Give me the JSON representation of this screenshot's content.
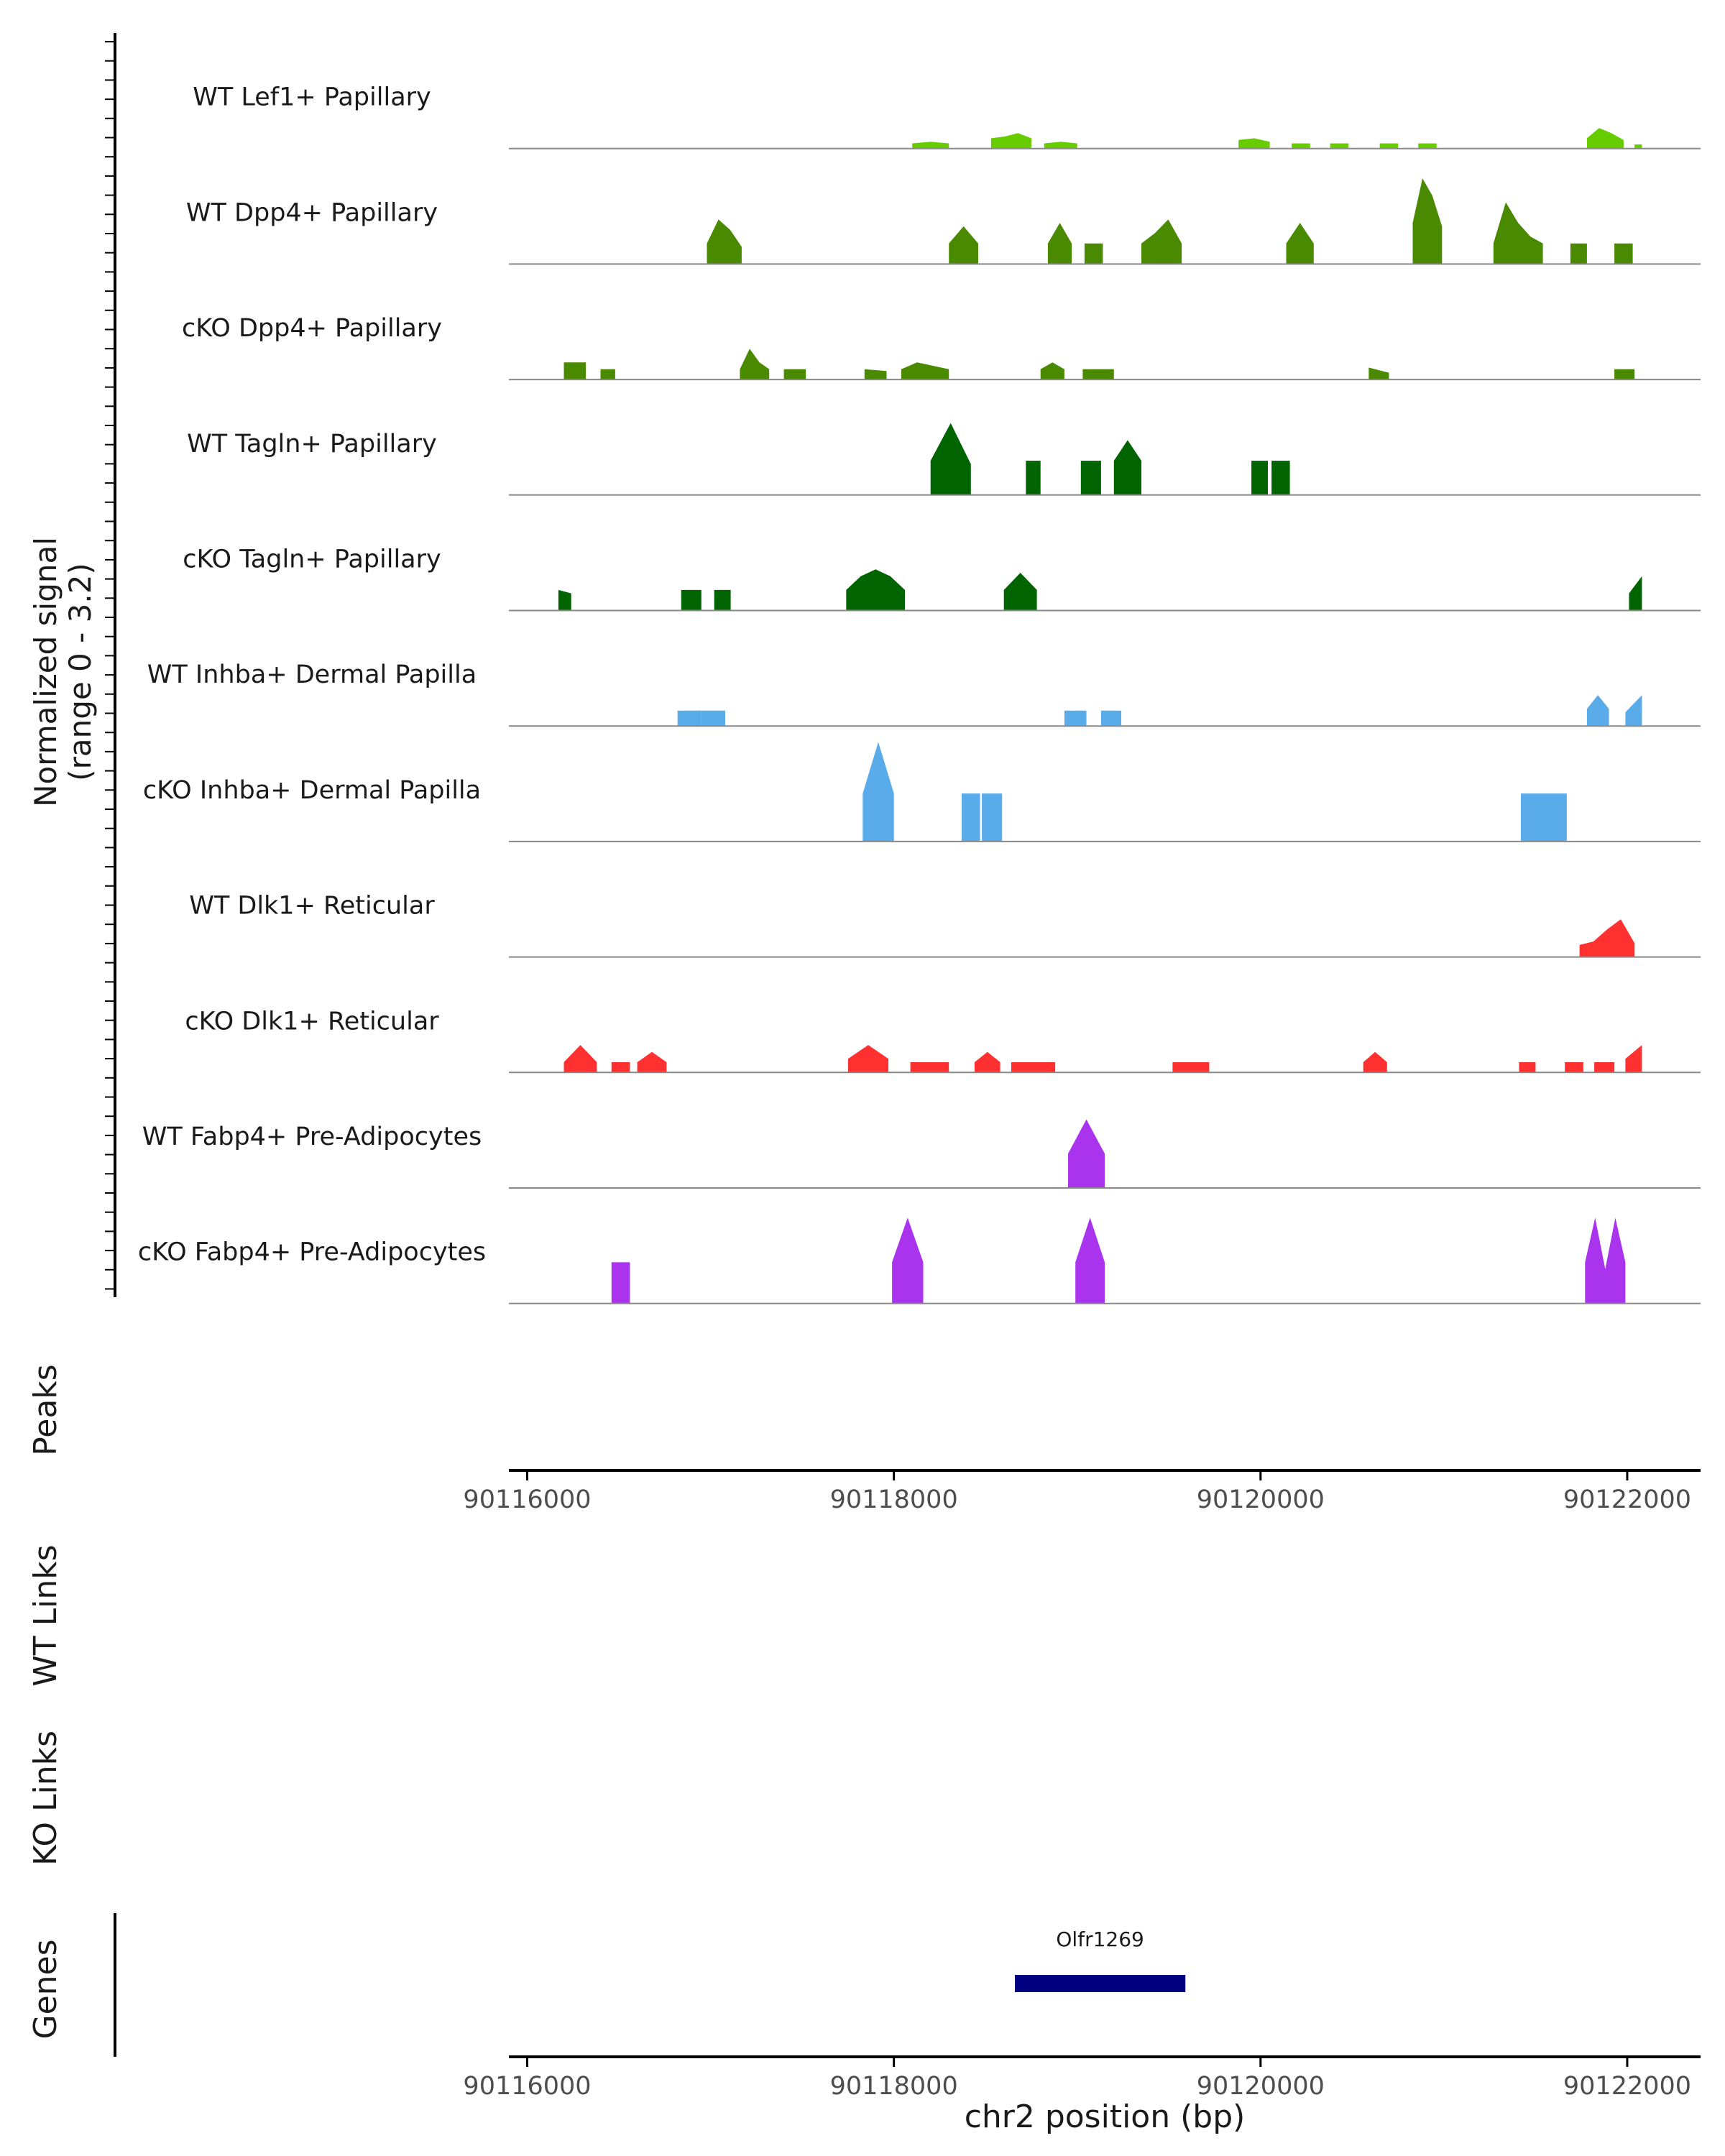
{
  "chart_data": {
    "type": "area",
    "title": "",
    "y_axis_label_line1": "Normalized signal",
    "y_axis_label_line2": "(range 0 - 3.2)",
    "ylim": [
      0,
      3.2
    ],
    "xlim": [
      90115900,
      90122400
    ],
    "x_ticks": [
      90116000,
      90118000,
      90120000,
      90122000
    ],
    "x_tick_labels": [
      "90116000",
      "90118000",
      "90120000",
      "90122000"
    ],
    "xlabel": "chr2 position (bp)",
    "tracks": [
      {
        "name": "WT Lef1+ Papillary",
        "color": "#66cc00",
        "regions": [
          {
            "s": 90118100,
            "e": 90118300,
            "h": [
              0.15,
              0.2,
              0.15
            ]
          },
          {
            "s": 90118530,
            "e": 90118750,
            "h": [
              0.3,
              0.35,
              0.45,
              0.3
            ]
          },
          {
            "s": 90118820,
            "e": 90119000,
            "h": [
              0.15,
              0.2,
              0.15
            ]
          },
          {
            "s": 90119880,
            "e": 90120050,
            "h": [
              0.25,
              0.3,
              0.2
            ]
          },
          {
            "s": 90120170,
            "e": 90120270,
            "h": [
              0.15,
              0.15
            ]
          },
          {
            "s": 90120380,
            "e": 90120480,
            "h": [
              0.15,
              0.15
            ]
          },
          {
            "s": 90120650,
            "e": 90120750,
            "h": [
              0.15,
              0.15
            ]
          },
          {
            "s": 90120860,
            "e": 90120960,
            "h": [
              0.15,
              0.15
            ]
          },
          {
            "s": 90121780,
            "e": 90121980,
            "h": [
              0.3,
              0.6,
              0.45,
              0.25
            ]
          },
          {
            "s": 90122040,
            "e": 90122080,
            "h": [
              0.12
            ]
          }
        ]
      },
      {
        "name": "WT Dpp4+ Papillary",
        "color": "#4a8a00",
        "regions": [
          {
            "s": 90116980,
            "e": 90117170,
            "h": [
              0.6,
              1.3,
              1.0,
              0.5
            ]
          },
          {
            "s": 90118300,
            "e": 90118460,
            "h": [
              0.6,
              1.1,
              0.6
            ]
          },
          {
            "s": 90118840,
            "e": 90118970,
            "h": [
              0.6,
              1.2,
              0.6
            ]
          },
          {
            "s": 90119040,
            "e": 90119140,
            "h": [
              0.6,
              0.6
            ]
          },
          {
            "s": 90119350,
            "e": 90119570,
            "h": [
              0.6,
              0.9,
              1.3,
              0.6
            ]
          },
          {
            "s": 90120140,
            "e": 90120290,
            "h": [
              0.6,
              1.2,
              0.6
            ]
          },
          {
            "s": 90120830,
            "e": 90120990,
            "h": [
              1.2,
              2.5,
              2.0,
              1.1
            ]
          },
          {
            "s": 90121270,
            "e": 90121540,
            "h": [
              0.6,
              1.8,
              1.2,
              0.8,
              0.6
            ]
          },
          {
            "s": 90121690,
            "e": 90121780,
            "h": [
              0.6,
              0.6
            ]
          },
          {
            "s": 90121930,
            "e": 90122030,
            "h": [
              0.6,
              0.6
            ]
          }
        ]
      },
      {
        "name": "cKO Dpp4+ Papillary",
        "color": "#4a8a00",
        "regions": [
          {
            "s": 90116200,
            "e": 90116320,
            "h": [
              0.5,
              0.5
            ]
          },
          {
            "s": 90116400,
            "e": 90116480,
            "h": [
              0.3,
              0.3
            ]
          },
          {
            "s": 90117160,
            "e": 90117320,
            "h": [
              0.3,
              0.9,
              0.5,
              0.3
            ]
          },
          {
            "s": 90117400,
            "e": 90117520,
            "h": [
              0.3,
              0.3
            ]
          },
          {
            "s": 90117840,
            "e": 90117960,
            "h": [
              0.3,
              0.25
            ]
          },
          {
            "s": 90118040,
            "e": 90118300,
            "h": [
              0.3,
              0.5,
              0.4,
              0.3
            ]
          },
          {
            "s": 90118800,
            "e": 90118930,
            "h": [
              0.3,
              0.5,
              0.3
            ]
          },
          {
            "s": 90119030,
            "e": 90119200,
            "h": [
              0.3,
              0.3
            ]
          },
          {
            "s": 90120590,
            "e": 90120700,
            "h": [
              0.35,
              0.2
            ]
          },
          {
            "s": 90121930,
            "e": 90122040,
            "h": [
              0.3,
              0.3
            ]
          }
        ]
      },
      {
        "name": "WT Tagln+ Papillary",
        "color": "#006400",
        "regions": [
          {
            "s": 90118200,
            "e": 90118420,
            "h": [
              1.0,
              2.1,
              0.9
            ]
          },
          {
            "s": 90118720,
            "e": 90118800,
            "h": [
              1.0,
              1.0
            ]
          },
          {
            "s": 90119020,
            "e": 90119130,
            "h": [
              1.0,
              1.0
            ]
          },
          {
            "s": 90119200,
            "e": 90119350,
            "h": [
              1.0,
              1.6,
              1.0
            ]
          },
          {
            "s": 90119950,
            "e": 90120040,
            "h": [
              1.0,
              1.0
            ]
          },
          {
            "s": 90120060,
            "e": 90120160,
            "h": [
              1.0,
              1.0
            ]
          }
        ]
      },
      {
        "name": "cKO Tagln+ Papillary",
        "color": "#006400",
        "regions": [
          {
            "s": 90116170,
            "e": 90116240,
            "h": [
              0.6,
              0.5
            ]
          },
          {
            "s": 90116840,
            "e": 90116950,
            "h": [
              0.6,
              0.6
            ]
          },
          {
            "s": 90117020,
            "e": 90117110,
            "h": [
              0.6,
              0.6
            ]
          },
          {
            "s": 90117740,
            "e": 90118060,
            "h": [
              0.6,
              1.0,
              1.2,
              1.0,
              0.6
            ]
          },
          {
            "s": 90118600,
            "e": 90118780,
            "h": [
              0.6,
              1.1,
              0.6
            ]
          },
          {
            "s": 90122010,
            "e": 90122080,
            "h": [
              0.5,
              1.0
            ]
          }
        ]
      },
      {
        "name": "WT Inhba+ Dermal Papilla",
        "color": "#5aabea",
        "regions": [
          {
            "s": 90116820,
            "e": 90116950,
            "h": [
              0.45,
              0.45
            ]
          },
          {
            "s": 90116950,
            "e": 90117080,
            "h": [
              0.45,
              0.45
            ]
          },
          {
            "s": 90118930,
            "e": 90119050,
            "h": [
              0.45,
              0.45
            ]
          },
          {
            "s": 90119130,
            "e": 90119240,
            "h": [
              0.45,
              0.45
            ]
          },
          {
            "s": 90121780,
            "e": 90121900,
            "h": [
              0.5,
              0.9,
              0.5
            ]
          },
          {
            "s": 90121990,
            "e": 90122080,
            "h": [
              0.4,
              0.9
            ]
          }
        ]
      },
      {
        "name": "cKO Inhba+ Dermal Papilla",
        "color": "#5aabea",
        "regions": [
          {
            "s": 90117830,
            "e": 90118000,
            "h": [
              1.4,
              2.9,
              1.4
            ]
          },
          {
            "s": 90118370,
            "e": 90118470,
            "h": [
              1.4,
              1.4
            ]
          },
          {
            "s": 90118480,
            "e": 90118590,
            "h": [
              1.4,
              1.4
            ]
          },
          {
            "s": 90121420,
            "e": 90121670,
            "h": [
              1.4,
              1.4
            ]
          }
        ]
      },
      {
        "name": "WT Dlk1+ Reticular",
        "color": "#ff3030",
        "regions": [
          {
            "s": 90121740,
            "e": 90122040,
            "h": [
              0.35,
              0.45,
              0.8,
              1.1,
              0.4
            ]
          }
        ]
      },
      {
        "name": "cKO Dlk1+ Reticular",
        "color": "#ff3030",
        "regions": [
          {
            "s": 90116200,
            "e": 90116380,
            "h": [
              0.3,
              0.8,
              0.3
            ]
          },
          {
            "s": 90116460,
            "e": 90116560,
            "h": [
              0.3,
              0.3
            ]
          },
          {
            "s": 90116600,
            "e": 90116760,
            "h": [
              0.3,
              0.6,
              0.3
            ]
          },
          {
            "s": 90117750,
            "e": 90117970,
            "h": [
              0.4,
              0.8,
              0.4
            ]
          },
          {
            "s": 90118090,
            "e": 90118300,
            "h": [
              0.3,
              0.3
            ]
          },
          {
            "s": 90118440,
            "e": 90118580,
            "h": [
              0.3,
              0.6,
              0.3
            ]
          },
          {
            "s": 90118640,
            "e": 90118880,
            "h": [
              0.3,
              0.3
            ]
          },
          {
            "s": 90119520,
            "e": 90119720,
            "h": [
              0.3,
              0.3
            ]
          },
          {
            "s": 90120560,
            "e": 90120690,
            "h": [
              0.3,
              0.6,
              0.3
            ]
          },
          {
            "s": 90121410,
            "e": 90121500,
            "h": [
              0.3,
              0.3
            ]
          },
          {
            "s": 90121660,
            "e": 90121760,
            "h": [
              0.3,
              0.3
            ]
          },
          {
            "s": 90121820,
            "e": 90121930,
            "h": [
              0.3,
              0.3
            ]
          },
          {
            "s": 90121990,
            "e": 90122080,
            "h": [
              0.4,
              0.8
            ]
          }
        ]
      },
      {
        "name": "WT Fabp4+ Pre-Adipocytes",
        "color": "#aa33ee",
        "regions": [
          {
            "s": 90118950,
            "e": 90119150,
            "h": [
              1.0,
              2.0,
              1.0
            ]
          }
        ]
      },
      {
        "name": "cKO Fabp4+ Pre-Adipocytes",
        "color": "#aa33ee",
        "regions": [
          {
            "s": 90116460,
            "e": 90116560,
            "h": [
              1.2,
              1.2
            ]
          },
          {
            "s": 90117990,
            "e": 90118160,
            "h": [
              1.2,
              2.5,
              1.2
            ]
          },
          {
            "s": 90118990,
            "e": 90119150,
            "h": [
              1.2,
              2.5,
              1.2
            ]
          },
          {
            "s": 90121770,
            "e": 90121990,
            "h": [
              1.2,
              2.5,
              1.0,
              2.5,
              1.2
            ]
          }
        ]
      }
    ],
    "panels": {
      "peaks_label": "Peaks",
      "wt_links_label": "WT Links",
      "ko_links_label": "KO Links",
      "genes_label": "Genes"
    },
    "genes": [
      {
        "name": "Olfr1269",
        "start": 90118660,
        "end": 90119590,
        "color": "#000080"
      }
    ]
  }
}
